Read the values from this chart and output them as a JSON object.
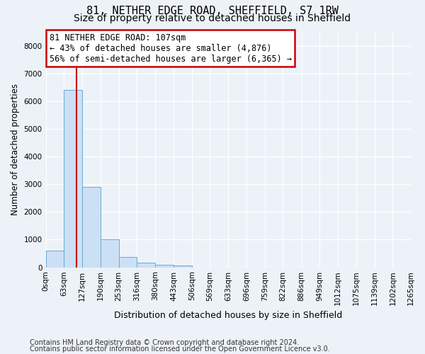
{
  "title_line1": "81, NETHER EDGE ROAD, SHEFFIELD, S7 1RW",
  "title_line2": "Size of property relative to detached houses in Sheffield",
  "xlabel": "Distribution of detached houses by size in Sheffield",
  "ylabel": "Number of detached properties",
  "bar_color": "#cce0f5",
  "bar_edge_color": "#6aaad4",
  "vline_color": "#cc0000",
  "annotation_text": "81 NETHER EDGE ROAD: 107sqm\n← 43% of detached houses are smaller (4,876)\n56% of semi-detached houses are larger (6,365) →",
  "annotation_box_facecolor": "#ffffff",
  "annotation_box_edgecolor": "#cc0000",
  "ylim": [
    0,
    8500
  ],
  "yticks": [
    0,
    1000,
    2000,
    3000,
    4000,
    5000,
    6000,
    7000,
    8000
  ],
  "bin_edges": [
    0,
    63,
    127,
    190,
    253,
    316,
    380,
    443,
    506,
    569,
    633,
    696,
    759,
    822,
    886,
    949,
    1012,
    1075,
    1139,
    1202,
    1265
  ],
  "bin_labels": [
    "0sqm",
    "63sqm",
    "127sqm",
    "190sqm",
    "253sqm",
    "316sqm",
    "380sqm",
    "443sqm",
    "506sqm",
    "569sqm",
    "633sqm",
    "696sqm",
    "759sqm",
    "822sqm",
    "886sqm",
    "949sqm",
    "1012sqm",
    "1075sqm",
    "1139sqm",
    "1202sqm",
    "1265sqm"
  ],
  "bar_heights": [
    600,
    6400,
    2900,
    1000,
    370,
    170,
    90,
    60,
    0,
    0,
    0,
    0,
    0,
    0,
    0,
    0,
    0,
    0,
    0,
    0
  ],
  "property_sqm": 107,
  "footer_line1": "Contains HM Land Registry data © Crown copyright and database right 2024.",
  "footer_line2": "Contains public sector information licensed under the Open Government Licence v3.0.",
  "bg_color": "#edf2f9",
  "grid_color": "#ffffff",
  "title1_fontsize": 11,
  "title2_fontsize": 10,
  "axis_label_fontsize": 8.5,
  "tick_fontsize": 7.5,
  "footer_fontsize": 7,
  "annot_fontsize": 8.5
}
